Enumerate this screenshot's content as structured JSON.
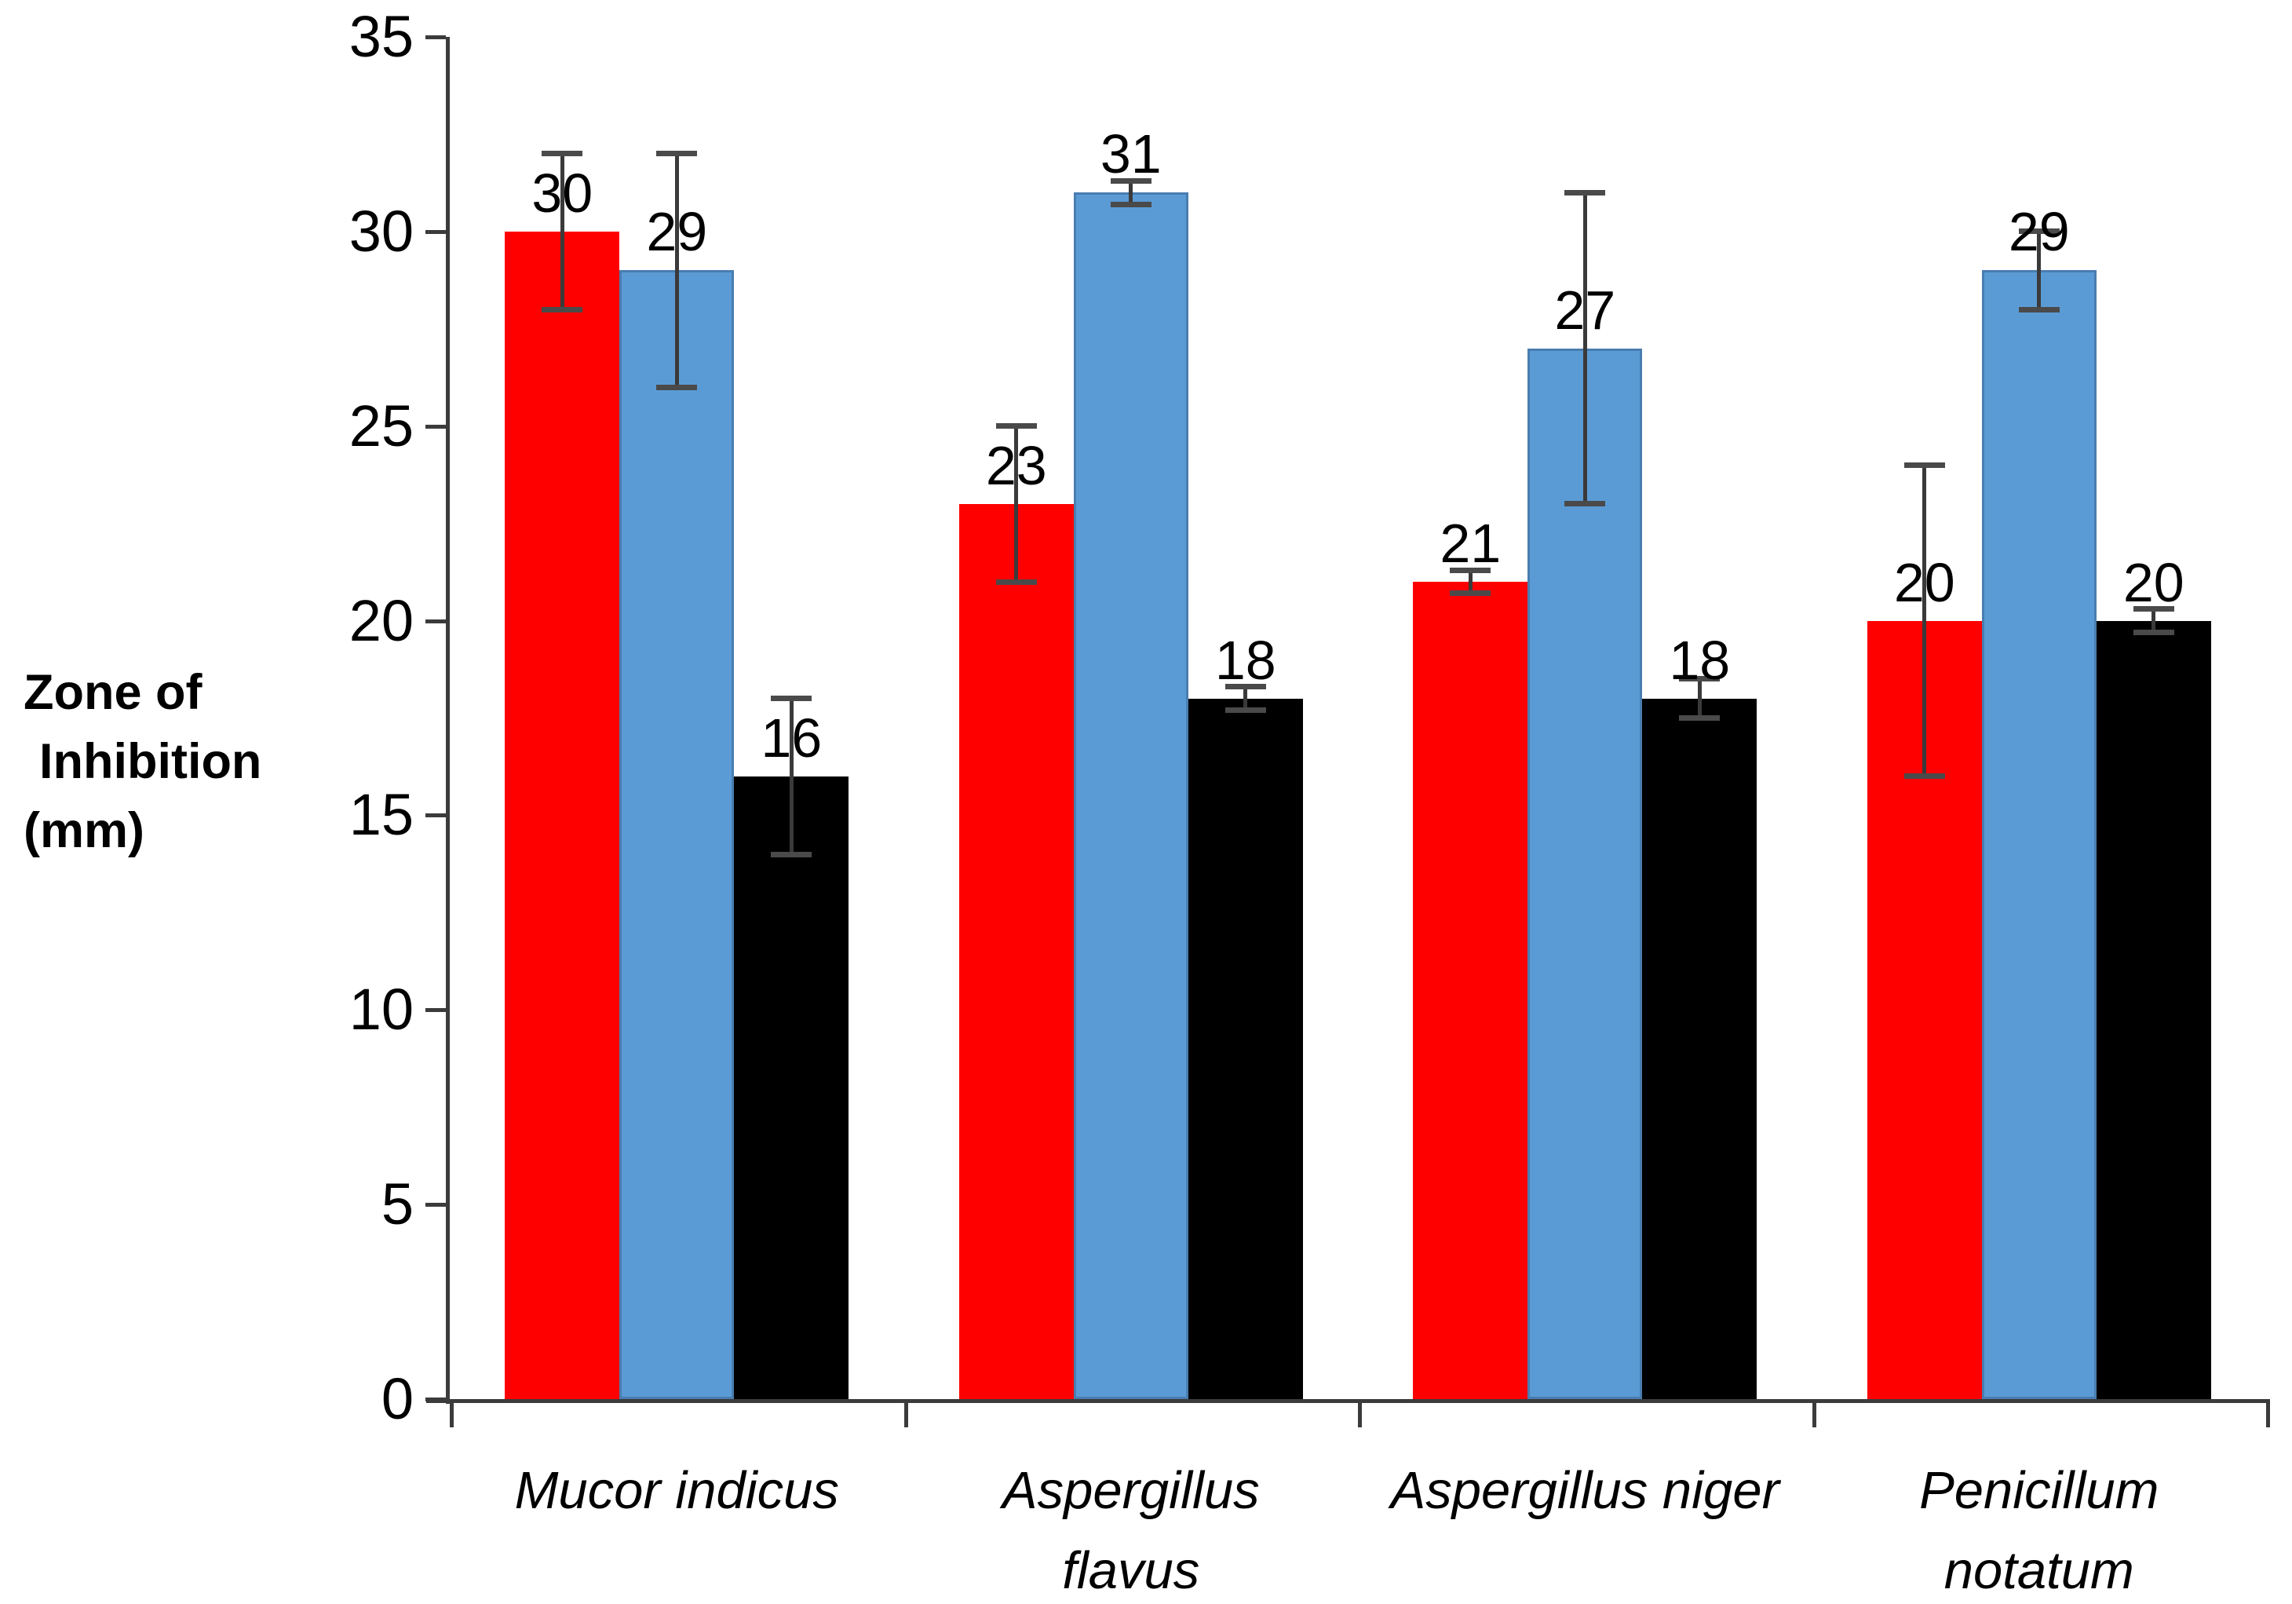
{
  "chart_data": {
    "type": "bar",
    "title": "",
    "ylabel_lines": [
      "Zone of",
      "Inhibition",
      "(mm)"
    ],
    "xlabel": "",
    "y_axis": {
      "min": 0,
      "max": 35,
      "step": 5,
      "tick_labels": [
        "0",
        "5",
        "10",
        "15",
        "20",
        "25",
        "30",
        "35"
      ]
    },
    "categories": [
      {
        "label_lines": [
          "Mucor indicus"
        ]
      },
      {
        "label_lines": [
          "Aspergillus",
          "flavus"
        ]
      },
      {
        "label_lines": [
          "Aspergillus niger"
        ]
      },
      {
        "label_lines": [
          "Penicillum",
          "notatum"
        ]
      }
    ],
    "series": [
      {
        "name": "red-series",
        "color": "#FF0000",
        "values": [
          30,
          23,
          21,
          20
        ],
        "error_plus": [
          2,
          2,
          0.3,
          4
        ],
        "error_minus": [
          2,
          2,
          0.3,
          4
        ]
      },
      {
        "name": "blue-series",
        "color": "#5B9BD5",
        "values": [
          29,
          31,
          27,
          29
        ],
        "error_plus": [
          3,
          0.3,
          4,
          1
        ],
        "error_minus": [
          3,
          0.3,
          4,
          1
        ]
      },
      {
        "name": "black-series",
        "color": "#000000",
        "values": [
          16,
          18,
          18,
          20
        ],
        "error_plus": [
          2,
          0.3,
          0.5,
          0.3
        ],
        "error_minus": [
          2,
          0.3,
          0.5,
          0.3
        ]
      }
    ],
    "data_labels": [
      [
        "30",
        "23",
        "21",
        "20"
      ],
      [
        "29",
        "31",
        "27",
        "29"
      ],
      [
        "16",
        "18",
        "18",
        "20"
      ]
    ],
    "legend": "none",
    "gridlines": false
  },
  "colors": {
    "red_bar": "#FF0000",
    "blue_bar": "#5B9BD5",
    "black_bar": "#000000",
    "axis": "#3b3b3b",
    "error_bar": "#3a3a3a",
    "text": "#000000"
  }
}
